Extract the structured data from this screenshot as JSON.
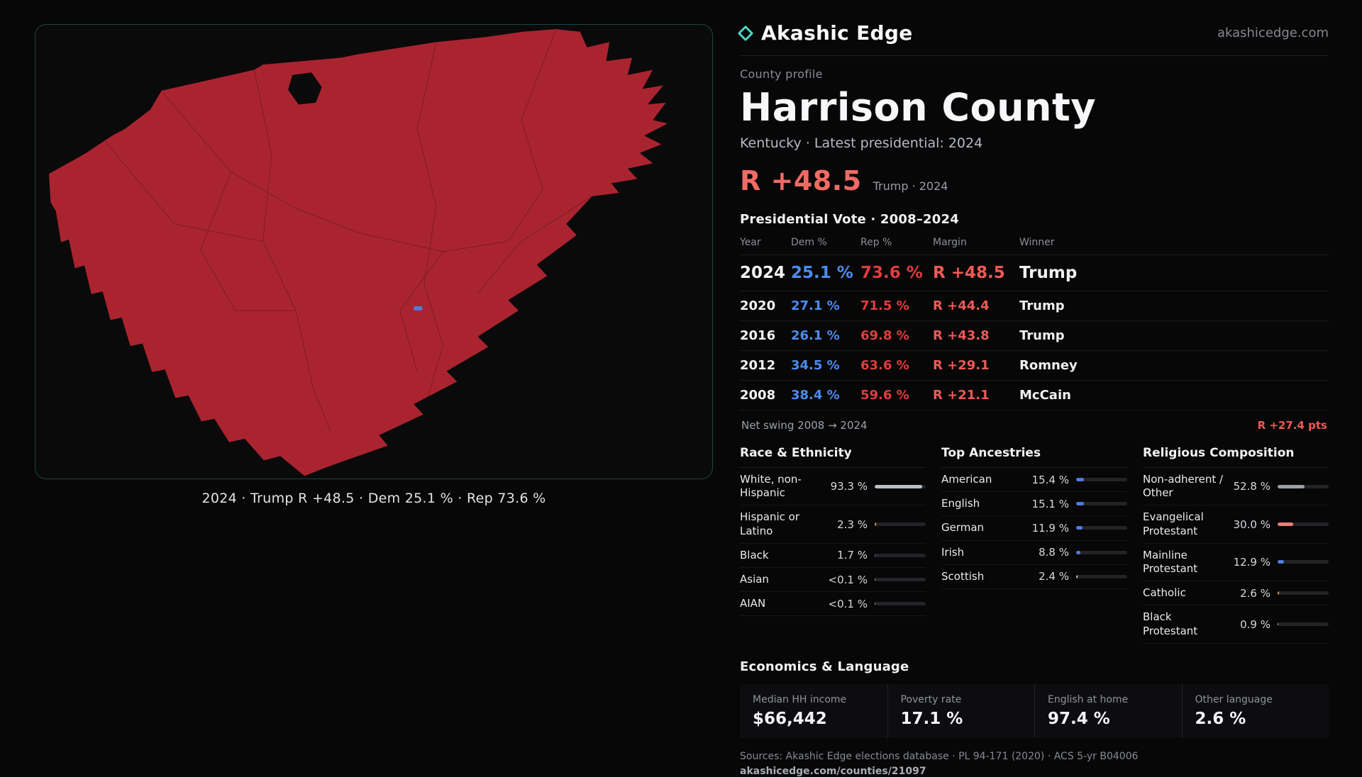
{
  "theme": {
    "accent_teal": "#49d6c7",
    "map_red": "#aa2430",
    "dem_blue": "#4a8df0",
    "rep_red": "#e23d3d",
    "margin_red": "#ee5a55",
    "big_margin_red": "#ef6b64"
  },
  "brand": {
    "name": "Akashic Edge",
    "domain": "akashicedge.com"
  },
  "profile": {
    "kicker": "County profile",
    "county": "Harrison County",
    "subtitle": "Kentucky · Latest presidential: 2024",
    "margin_value": "R +48.5",
    "margin_note": "Trump · 2024"
  },
  "map": {
    "caption": "2024 · Trump R +48.5 · Dem 25.1 % · Rep 73.6 %"
  },
  "vote": {
    "title": "Presidential Vote · 2008–2024",
    "columns": {
      "year": "Year",
      "dem": "Dem %",
      "rep": "Rep %",
      "margin": "Margin",
      "winner": "Winner"
    },
    "rows": [
      {
        "year": "2024",
        "dem": "25.1 %",
        "rep": "73.6 %",
        "margin": "R +48.5",
        "winner": "Trump"
      },
      {
        "year": "2020",
        "dem": "27.1 %",
        "rep": "71.5 %",
        "margin": "R +44.4",
        "winner": "Trump"
      },
      {
        "year": "2016",
        "dem": "26.1 %",
        "rep": "69.8 %",
        "margin": "R +43.8",
        "winner": "Trump"
      },
      {
        "year": "2012",
        "dem": "34.5 %",
        "rep": "63.6 %",
        "margin": "R +29.1",
        "winner": "Romney"
      },
      {
        "year": "2008",
        "dem": "38.4 %",
        "rep": "59.6 %",
        "margin": "R +21.1",
        "winner": "McCain"
      }
    ],
    "swing_label": "Net swing 2008 → 2024",
    "swing_value": "R +27.4 pts"
  },
  "demographics": {
    "race": {
      "title": "Race & Ethnicity",
      "rows": [
        {
          "label": "White, non-Hispanic",
          "value": "93.3 %",
          "pct": 93.3,
          "color": "#b9bec7"
        },
        {
          "label": "Hispanic or Latino",
          "value": "2.3 %",
          "pct": 2.3,
          "color": "#d9a23a"
        },
        {
          "label": "Black",
          "value": "1.7 %",
          "pct": 1.7,
          "color": "#4e7de0"
        },
        {
          "label": "Asian",
          "value": "<0.1 %",
          "pct": 0.1,
          "color": "#9aa0a8"
        },
        {
          "label": "AIAN",
          "value": "<0.1 %",
          "pct": 0.1,
          "color": "#9aa0a8"
        }
      ]
    },
    "ancestry": {
      "title": "Top Ancestries",
      "rows": [
        {
          "label": "American",
          "value": "15.4 %",
          "pct": 15.4,
          "color": "#4e7de0"
        },
        {
          "label": "English",
          "value": "15.1 %",
          "pct": 15.1,
          "color": "#4e7de0"
        },
        {
          "label": "German",
          "value": "11.9 %",
          "pct": 11.9,
          "color": "#4e7de0"
        },
        {
          "label": "Irish",
          "value": "8.8 %",
          "pct": 8.8,
          "color": "#4e7de0"
        },
        {
          "label": "Scottish",
          "value": "2.4 %",
          "pct": 2.4,
          "color": "#c3c6cc"
        }
      ]
    },
    "religion": {
      "title": "Religious Composition",
      "rows": [
        {
          "label": "Non-adherent / Other",
          "value": "52.8 %",
          "pct": 52.8,
          "color": "#9aa0a8"
        },
        {
          "label": "Evangelical Protestant",
          "value": "30.0 %",
          "pct": 30.0,
          "color": "#e87f78"
        },
        {
          "label": "Mainline Protestant",
          "value": "12.9 %",
          "pct": 12.9,
          "color": "#4e7de0"
        },
        {
          "label": "Catholic",
          "value": "2.6 %",
          "pct": 2.6,
          "color": "#d9a23a"
        },
        {
          "label": "Black Protestant",
          "value": "0.9 %",
          "pct": 0.9,
          "color": "#c3c6cc"
        }
      ]
    }
  },
  "economics": {
    "title": "Economics & Language",
    "stats": [
      {
        "label": "Median HH income",
        "value": "$66,442"
      },
      {
        "label": "Poverty rate",
        "value": "17.1 %"
      },
      {
        "label": "English at home",
        "value": "97.4 %"
      },
      {
        "label": "Other language",
        "value": "2.6 %"
      }
    ]
  },
  "footer": {
    "sources": "Sources: Akashic Edge elections database · PL 94-171 (2020) · ACS 5-yr B04006",
    "permalink": "akashicedge.com/counties/21097"
  }
}
